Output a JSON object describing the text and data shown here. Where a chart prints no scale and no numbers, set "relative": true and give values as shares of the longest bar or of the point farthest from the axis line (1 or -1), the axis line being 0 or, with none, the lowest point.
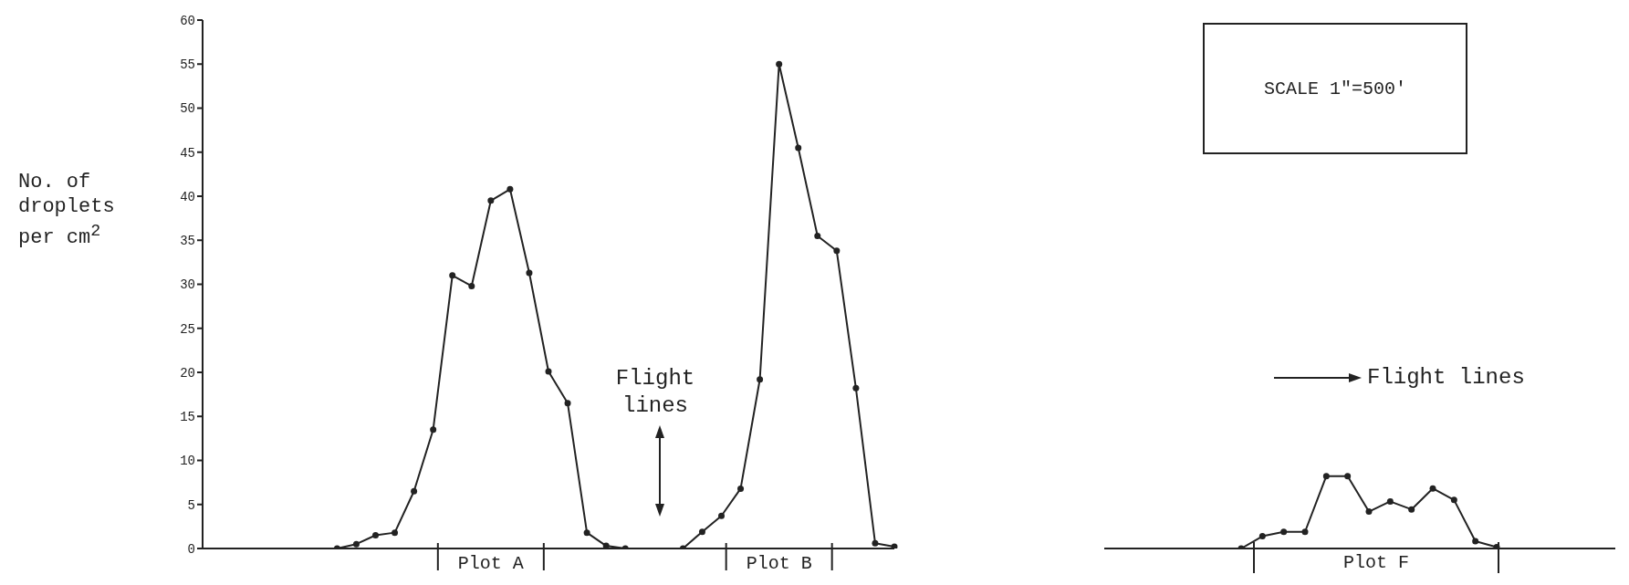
{
  "chart_data": [
    {
      "type": "line",
      "ylabel": "No. of droplets per cm$^{2}$",
      "categories": [
        null,
        null,
        null,
        null,
        null,
        null,
        null,
        null,
        null,
        null,
        null,
        null,
        null,
        null,
        null,
        "Plot A",
        null,
        null,
        null,
        null,
        null,
        null,
        null,
        null,
        null,
        null,
        null,
        null,
        null,
        null,
        "Plot B",
        null,
        null,
        null,
        null,
        null,
        null
      ],
      "values": [
        null,
        null,
        null,
        null,
        null,
        null,
        null,
        0,
        0.5,
        1.5,
        1.8,
        6.5,
        13.5,
        31,
        29.8,
        39.5,
        40.8,
        31.3,
        20.1,
        16.5,
        1.8,
        0.3,
        0,
        null,
        null,
        0,
        1.9,
        3.7,
        6.8,
        19.2,
        55,
        45.5,
        35.5,
        33.8,
        18.2,
        0.6,
        0.2
      ],
      "color": "#222222",
      "marker": "circle",
      "ylim": [
        0,
        60
      ],
      "yticks": [
        0,
        5,
        10,
        15,
        20,
        25,
        30,
        35,
        40,
        45,
        50,
        55,
        60
      ],
      "annotations": [
        "Flight lines"
      ]
    },
    {
      "type": "line",
      "categories": [
        null,
        null,
        null,
        null,
        null,
        null,
        null,
        null,
        null,
        null,
        null,
        null,
        null
      ],
      "values": [
        0,
        0.17,
        0.23,
        0.23,
        1,
        1,
        0.51,
        0.65,
        0.54,
        0.83,
        0.67,
        0.1,
        0.02
      ],
      "color": "#222222",
      "marker": "circle",
      "relative": true,
      "annotations": [
        "SCALE 1\"=500'",
        "Flight lines",
        "Plot F"
      ]
    }
  ]
}
